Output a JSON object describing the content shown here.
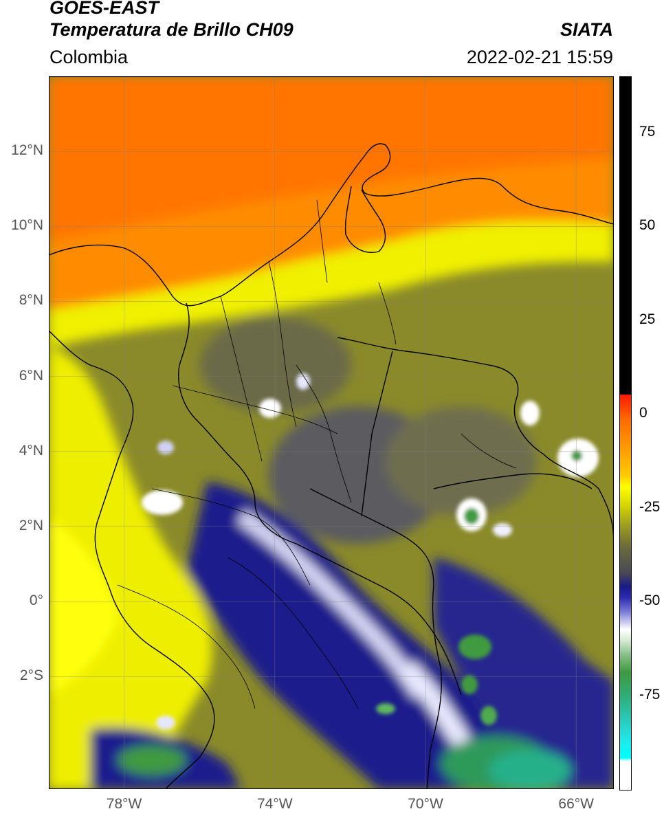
{
  "header": {
    "line1": "GOES-EAST",
    "line2": "Temperatura de Brillo CH09",
    "org": "SIATA",
    "region": "Colombia",
    "timestamp": "2022-02-21 15:59"
  },
  "axes": {
    "lat_labels": [
      "12°N",
      "10°N",
      "8°N",
      "6°N",
      "4°N",
      "2°N",
      "0°",
      "2°S"
    ],
    "lat_values": [
      12,
      10,
      8,
      6,
      4,
      2,
      0,
      -2
    ],
    "lon_labels": [
      "78°W",
      "74°W",
      "70°W",
      "66°W"
    ],
    "lon_values": [
      -78,
      -74,
      -70,
      -66
    ],
    "lon_range": [
      -80,
      -65
    ],
    "lat_range": [
      -5,
      14
    ]
  },
  "colorbar": {
    "tick_labels": [
      "75",
      "50",
      "25",
      "0",
      "-25",
      "-50",
      "-75"
    ],
    "tick_values": [
      75,
      50,
      25,
      0,
      -25,
      -50,
      -75
    ],
    "range": [
      -100,
      90
    ]
  },
  "colors": {
    "warm_orange": "#ff8c00",
    "warm_yellow": "#f2f200",
    "mid_olive": "#8a8a2a",
    "cold_gray": "#5a5a60",
    "cold_blue": "#1c1c8c",
    "cold_white": "#ffffff",
    "very_cold_green": "#3f9a3f"
  }
}
